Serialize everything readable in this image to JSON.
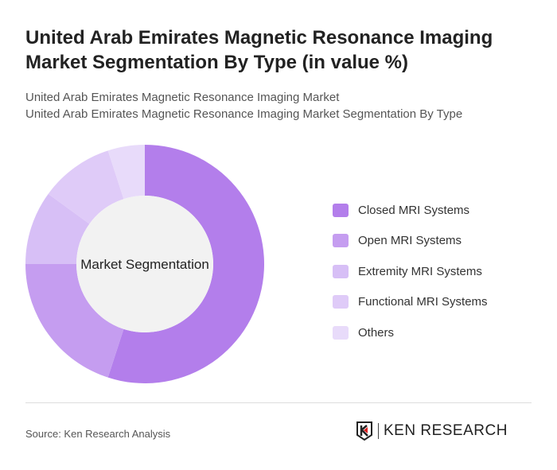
{
  "title": "United Arab Emirates Magnetic Resonance Imaging Market Segmentation By Type (in value %)",
  "subtitle1": "United Arab Emirates Magnetic Resonance Imaging Market",
  "subtitle2": "United Arab Emirates Magnetic Resonance Imaging Market Segmentation By Type",
  "source": "Source: Ken Research Analysis",
  "logo_text": "KEN RESEARCH",
  "chart_data": {
    "type": "pie",
    "donut": true,
    "center_label": "Market Segmentation",
    "categories": [
      "Closed MRI Systems",
      "Open MRI Systems",
      "Extremity MRI Systems",
      "Functional MRI Systems",
      "Others"
    ],
    "values": [
      55,
      20,
      10,
      10,
      5
    ],
    "colors": [
      "#b37eeb",
      "#c59df0",
      "#d7bff6",
      "#dfcbf8",
      "#e8dbfa"
    ],
    "legend_position": "right"
  }
}
